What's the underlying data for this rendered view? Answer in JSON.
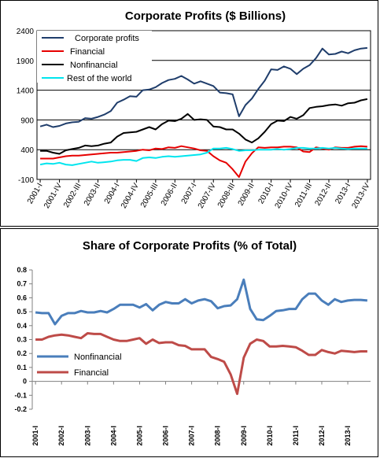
{
  "chart_data": [
    {
      "type": "line",
      "title": "Corporate Profits ($ Billions)",
      "xlabel": "",
      "ylabel": "",
      "ylim": [
        -100,
        2400
      ],
      "yticks": [
        "-100",
        "400",
        "900",
        "1400",
        "1900",
        "2400"
      ],
      "grid": true,
      "legend_position": "top-left",
      "categories": [
        "2001-I",
        "2001-II",
        "2001-III",
        "2001-IV",
        "2002-I",
        "2002-II",
        "2002-III",
        "2002-IV",
        "2003-I",
        "2003-II",
        "2003-III",
        "2003-IV",
        "2004-I",
        "2004-II",
        "2004-III",
        "2004-IV",
        "2005-I",
        "2005-II",
        "2005-III",
        "2005-IV",
        "2006-I",
        "2006-II",
        "2006-III",
        "2006-IV",
        "2007-I",
        "2007-II",
        "2007-III",
        "2007-IV",
        "2008-I",
        "2008-II",
        "2008-III",
        "2008-IV",
        "2009-I",
        "2009-II",
        "2009-III",
        "2009-IV",
        "2010-I",
        "2010-II",
        "2010-III",
        "2010-IV",
        "2011-I",
        "2011-II",
        "2011-III",
        "2011-IV",
        "2012-I",
        "2012-II",
        "2012-III",
        "2012-IV",
        "2013-I",
        "2013-II",
        "2013-III",
        "2013-IV"
      ],
      "xtick_labels": [
        "2001-I",
        "2001-IV",
        "2002-III",
        "2003-II",
        "2004-I",
        "2004-IV",
        "2005-III",
        "2006-II",
        "2007-I",
        "2007-IV",
        "2008-III",
        "2009-II",
        "2010-I",
        "2010-IV",
        "2011-III",
        "2012-II",
        "2013-I",
        "2013-IV"
      ],
      "series": [
        {
          "name": "Corporate profits",
          "color": "#1f3d6b",
          "values": [
            790,
            820,
            780,
            800,
            840,
            860,
            870,
            930,
            920,
            950,
            990,
            1050,
            1190,
            1240,
            1300,
            1290,
            1400,
            1410,
            1450,
            1520,
            1570,
            1590,
            1640,
            1580,
            1510,
            1550,
            1510,
            1470,
            1360,
            1350,
            1330,
            960,
            1150,
            1260,
            1420,
            1560,
            1750,
            1740,
            1800,
            1760,
            1670,
            1760,
            1820,
            1940,
            2100,
            2000,
            2010,
            2050,
            2020,
            2070,
            2100,
            2110
          ]
        },
        {
          "name": "Financial",
          "color": "#e60000",
          "values": [
            250,
            250,
            250,
            270,
            290,
            300,
            300,
            310,
            320,
            330,
            340,
            350,
            350,
            360,
            370,
            380,
            400,
            390,
            420,
            410,
            440,
            430,
            460,
            440,
            420,
            390,
            380,
            290,
            220,
            180,
            70,
            -60,
            200,
            340,
            440,
            430,
            440,
            440,
            450,
            450,
            440,
            370,
            360,
            440,
            420,
            400,
            440,
            430,
            430,
            450,
            460,
            450
          ]
        },
        {
          "name": "Nonfinancial",
          "color": "#000000",
          "values": [
            380,
            380,
            350,
            330,
            390,
            410,
            430,
            470,
            460,
            470,
            500,
            520,
            620,
            680,
            690,
            700,
            740,
            780,
            740,
            830,
            890,
            880,
            920,
            1000,
            900,
            910,
            900,
            790,
            780,
            740,
            740,
            670,
            570,
            520,
            590,
            700,
            830,
            890,
            880,
            950,
            920,
            980,
            1100,
            1120,
            1130,
            1150,
            1160,
            1140,
            1180,
            1190,
            1230,
            1250
          ]
        },
        {
          "name": "Rest of the world",
          "color": "#00e5ee",
          "values": [
            150,
            170,
            160,
            180,
            150,
            140,
            160,
            180,
            200,
            180,
            190,
            200,
            220,
            230,
            230,
            210,
            260,
            270,
            260,
            280,
            290,
            280,
            290,
            300,
            310,
            320,
            350,
            420,
            420,
            430,
            410,
            380,
            390,
            390,
            400,
            400,
            400,
            410,
            400,
            410,
            430,
            430,
            420,
            420,
            430,
            420,
            430,
            420,
            410,
            420,
            420,
            420
          ]
        }
      ]
    },
    {
      "type": "line",
      "title": "Share of Corporate Profits (% of Total)",
      "xlabel": "",
      "ylabel": "",
      "ylim": [
        -0.2,
        0.8
      ],
      "yticks": [
        "-0.2",
        "-0.1",
        "0",
        "0.1",
        "0.2",
        "0.3",
        "0.4",
        "0.5",
        "0.6",
        "0.7",
        "0.8"
      ],
      "grid": false,
      "legend_position": "bottom-left",
      "categories": [
        "2001-I",
        "2001-II",
        "2001-III",
        "2001-IV",
        "2002-I",
        "2002-II",
        "2002-III",
        "2002-IV",
        "2003-I",
        "2003-II",
        "2003-III",
        "2003-IV",
        "2004-I",
        "2004-II",
        "2004-III",
        "2004-IV",
        "2005-I",
        "2005-II",
        "2005-III",
        "2005-IV",
        "2006-I",
        "2006-II",
        "2006-III",
        "2006-IV",
        "2007-I",
        "2007-II",
        "2007-III",
        "2007-IV",
        "2008-I",
        "2008-II",
        "2008-III",
        "2008-IV",
        "2009-I",
        "2009-II",
        "2009-III",
        "2009-IV",
        "2010-I",
        "2010-II",
        "2010-III",
        "2010-IV",
        "2011-I",
        "2011-II",
        "2011-III",
        "2011-IV",
        "2012-I",
        "2012-II",
        "2012-III",
        "2012-IV",
        "2013-I",
        "2013-II",
        "2013-III",
        "2013-IV"
      ],
      "xtick_labels": [
        "2001-I",
        "2002-I",
        "2003-I",
        "2004-I",
        "2005-I",
        "2006-I",
        "2007-I",
        "2008-I",
        "2009-I",
        "2010-I",
        "2011-I",
        "2012-I",
        "2013-I"
      ],
      "series": [
        {
          "name": "Nonfinancial",
          "color": "#4a7ebb",
          "values": [
            0.495,
            0.49,
            0.49,
            0.41,
            0.47,
            0.49,
            0.49,
            0.505,
            0.495,
            0.495,
            0.505,
            0.495,
            0.52,
            0.55,
            0.55,
            0.55,
            0.53,
            0.555,
            0.51,
            0.55,
            0.57,
            0.56,
            0.56,
            0.59,
            0.56,
            0.58,
            0.59,
            0.575,
            0.525,
            0.54,
            0.545,
            0.59,
            0.73,
            0.52,
            0.445,
            0.44,
            0.47,
            0.505,
            0.51,
            0.52,
            0.52,
            0.59,
            0.63,
            0.63,
            0.58,
            0.55,
            0.59,
            0.57,
            0.58,
            0.585,
            0.585,
            0.58
          ]
        },
        {
          "name": "Financial",
          "color": "#be4b48",
          "values": [
            0.3,
            0.3,
            0.32,
            0.33,
            0.335,
            0.33,
            0.32,
            0.31,
            0.345,
            0.34,
            0.34,
            0.32,
            0.3,
            0.29,
            0.29,
            0.3,
            0.31,
            0.27,
            0.3,
            0.275,
            0.28,
            0.28,
            0.26,
            0.255,
            0.23,
            0.23,
            0.23,
            0.175,
            0.16,
            0.14,
            0.05,
            -0.09,
            0.17,
            0.27,
            0.3,
            0.29,
            0.25,
            0.25,
            0.255,
            0.25,
            0.245,
            0.22,
            0.19,
            0.19,
            0.225,
            0.21,
            0.2,
            0.22,
            0.215,
            0.21,
            0.215,
            0.215
          ]
        }
      ]
    }
  ]
}
